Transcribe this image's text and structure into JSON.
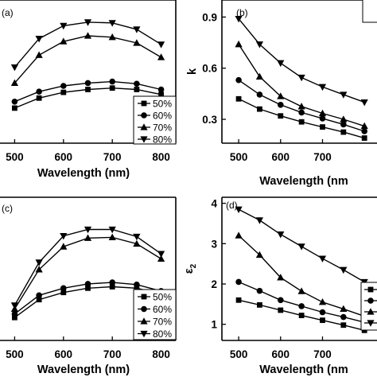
{
  "chart_data": [
    {
      "panel_label": "(a)",
      "type": "line",
      "xlabel": "Wavelength (nm)",
      "ylabel": "",
      "xlim": [
        470,
        830
      ],
      "ylim": [
        0,
        1
      ],
      "xticks": [
        500,
        600,
        700,
        800
      ],
      "yticks": [],
      "legend_position": "bottom-right",
      "series": [
        {
          "name": "50%",
          "marker": "square",
          "x": [
            500,
            550,
            600,
            650,
            700,
            750,
            800
          ],
          "y": [
            0.245,
            0.315,
            0.355,
            0.375,
            0.385,
            0.375,
            0.34
          ]
        },
        {
          "name": "60%",
          "marker": "circle",
          "x": [
            500,
            550,
            600,
            650,
            700,
            750,
            800
          ],
          "y": [
            0.29,
            0.36,
            0.4,
            0.42,
            0.43,
            0.415,
            0.375
          ]
        },
        {
          "name": "70%",
          "marker": "triangle-up",
          "x": [
            500,
            550,
            600,
            650,
            700,
            750,
            800
          ],
          "y": [
            0.42,
            0.615,
            0.71,
            0.75,
            0.74,
            0.7,
            0.6
          ]
        },
        {
          "name": "80%",
          "marker": "triangle-down",
          "x": [
            500,
            550,
            600,
            650,
            700,
            750,
            800
          ],
          "y": [
            0.53,
            0.73,
            0.82,
            0.845,
            0.84,
            0.795,
            0.69
          ]
        }
      ]
    },
    {
      "panel_label": "(b)",
      "type": "line",
      "xlabel": "Wavelength (nm",
      "ylabel": "k",
      "xlim": [
        460,
        830
      ],
      "ylim": [
        0.16,
        1.0
      ],
      "xticks": [
        500,
        600,
        700
      ],
      "yticks": [
        "0.3",
        "0.6",
        "0.9"
      ],
      "series": [
        {
          "marker": "square",
          "x": [
            500,
            550,
            600,
            650,
            700,
            750,
            800
          ],
          "y": [
            0.42,
            0.36,
            0.32,
            0.285,
            0.255,
            0.225,
            0.19
          ]
        },
        {
          "marker": "circle",
          "x": [
            500,
            550,
            600,
            650,
            700,
            750,
            800
          ],
          "y": [
            0.53,
            0.445,
            0.385,
            0.34,
            0.305,
            0.27,
            0.23
          ]
        },
        {
          "marker": "triangle-up",
          "x": [
            500,
            550,
            600,
            650,
            700,
            750,
            800
          ],
          "y": [
            0.74,
            0.55,
            0.435,
            0.375,
            0.335,
            0.3,
            0.26
          ]
        },
        {
          "marker": "triangle-down",
          "x": [
            500,
            550,
            600,
            650,
            700,
            750,
            800
          ],
          "y": [
            0.89,
            0.74,
            0.63,
            0.545,
            0.49,
            0.445,
            0.4
          ]
        }
      ]
    },
    {
      "panel_label": "(c)",
      "type": "line",
      "xlabel": "Wavelength (nm)",
      "ylabel": "",
      "xlim": [
        470,
        830
      ],
      "ylim": [
        0,
        1
      ],
      "xticks": [
        500,
        600,
        700,
        800
      ],
      "yticks": [],
      "legend_position": "bottom-right",
      "series": [
        {
          "name": "50%",
          "marker": "square",
          "x": [
            500,
            550,
            600,
            650,
            700,
            750,
            800
          ],
          "y": [
            0.16,
            0.285,
            0.335,
            0.365,
            0.375,
            0.365,
            0.325
          ]
        },
        {
          "name": "60%",
          "marker": "circle",
          "x": [
            500,
            550,
            600,
            650,
            700,
            750,
            800
          ],
          "y": [
            0.185,
            0.315,
            0.365,
            0.395,
            0.405,
            0.39,
            0.345
          ]
        },
        {
          "name": "70%",
          "marker": "triangle-up",
          "x": [
            500,
            550,
            600,
            650,
            700,
            750,
            800
          ],
          "y": [
            0.22,
            0.495,
            0.655,
            0.715,
            0.72,
            0.675,
            0.57
          ]
        },
        {
          "name": "80%",
          "marker": "triangle-down",
          "x": [
            500,
            550,
            600,
            650,
            700,
            750,
            800
          ],
          "y": [
            0.245,
            0.545,
            0.73,
            0.775,
            0.775,
            0.725,
            0.605
          ]
        }
      ]
    },
    {
      "panel_label": "(d)",
      "type": "line",
      "xlabel": "Wavelength (nm",
      "ylabel": "ε2",
      "ylabel_base": "ε",
      "ylabel_sub": "2",
      "xlim": [
        460,
        830
      ],
      "ylim": [
        0.6,
        4.15
      ],
      "xticks": [
        500,
        600,
        700
      ],
      "yticks": [
        "1",
        "2",
        "3",
        "4"
      ],
      "series": [
        {
          "marker": "square",
          "x": [
            500,
            550,
            600,
            650,
            700,
            750,
            800
          ],
          "y": [
            1.6,
            1.48,
            1.35,
            1.22,
            1.1,
            0.98,
            0.85
          ]
        },
        {
          "marker": "circle",
          "x": [
            500,
            550,
            600,
            650,
            700,
            750,
            800
          ],
          "y": [
            2.05,
            1.83,
            1.6,
            1.45,
            1.3,
            1.18,
            1.05
          ]
        },
        {
          "marker": "triangle-up",
          "x": [
            500,
            550,
            600,
            650,
            700,
            750,
            800
          ],
          "y": [
            3.2,
            2.72,
            2.16,
            1.82,
            1.55,
            1.38,
            1.2
          ]
        },
        {
          "marker": "triangle-down",
          "x": [
            500,
            550,
            600,
            650,
            700,
            750,
            800
          ],
          "y": [
            3.85,
            3.58,
            3.23,
            2.93,
            2.63,
            2.35,
            2.05
          ]
        }
      ]
    }
  ]
}
